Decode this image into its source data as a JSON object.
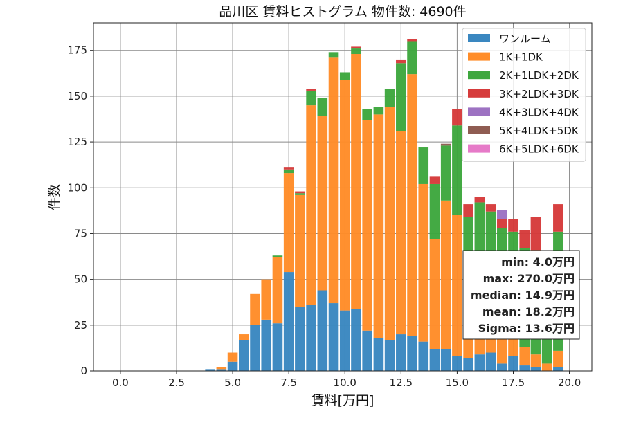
{
  "chart_data": {
    "type": "bar",
    "stacked": true,
    "title": "品川区 賃料ヒストグラム  物件数: 4690件",
    "xlabel": "賃料[万円]",
    "ylabel": "件数",
    "xlim": [
      -1.2,
      21.0
    ],
    "ylim": [
      0,
      190
    ],
    "xticks": [
      0.0,
      2.5,
      5.0,
      7.5,
      10.0,
      12.5,
      15.0,
      17.5,
      20.0
    ],
    "xtick_labels": [
      "0.0",
      "2.5",
      "5.0",
      "7.5",
      "10.0",
      "12.5",
      "15.0",
      "17.5",
      "20.0"
    ],
    "yticks": [
      0,
      25,
      50,
      75,
      100,
      125,
      150,
      175
    ],
    "ytick_labels": [
      "0",
      "25",
      "50",
      "75",
      "100",
      "125",
      "150",
      "175"
    ],
    "grid": true,
    "legend_position": "top-right",
    "bar_width": 0.45,
    "x": [
      4.0,
      4.5,
      5.0,
      5.5,
      6.0,
      6.5,
      7.0,
      7.5,
      8.0,
      8.5,
      9.0,
      9.5,
      10.0,
      10.5,
      11.0,
      11.5,
      12.0,
      12.5,
      13.0,
      13.5,
      14.0,
      14.5,
      15.0,
      15.5,
      16.0,
      16.5,
      17.0,
      17.5,
      18.0,
      18.5,
      19.0,
      19.5
    ],
    "series": [
      {
        "name": "ワンルーム",
        "color": "#3a87c0",
        "values": [
          1,
          1,
          5,
          17,
          25,
          28,
          26,
          54,
          35,
          36,
          44,
          37,
          33,
          34,
          22,
          18,
          17,
          20,
          19,
          16,
          12,
          12,
          8,
          7,
          9,
          10,
          4,
          8,
          3,
          2,
          0,
          2
        ]
      },
      {
        "name": "1K+1DK",
        "color": "#ff8c28",
        "values": [
          0,
          1,
          5,
          3,
          17,
          22,
          36,
          54,
          61,
          109,
          95,
          134,
          126,
          139,
          115,
          122,
          127,
          111,
          143,
          86,
          60,
          81,
          77,
          56,
          45,
          38,
          14,
          15,
          10,
          7,
          4,
          9
        ]
      },
      {
        "name": "2K+1LDK+2DK",
        "color": "#3ea73e",
        "values": [
          0,
          0,
          0,
          0,
          0,
          0,
          1,
          2,
          1,
          8,
          10,
          3,
          4,
          3,
          6,
          4,
          10,
          37,
          18,
          20,
          30,
          30,
          49,
          21,
          38,
          39,
          60,
          53,
          54,
          57,
          58,
          65
        ]
      },
      {
        "name": "3K+2LDK+3DK",
        "color": "#d63b3b",
        "values": [
          0,
          0,
          0,
          0,
          0,
          0,
          0,
          1,
          1,
          1,
          0,
          0,
          0,
          1,
          0,
          0,
          0,
          2,
          1,
          0,
          4,
          0,
          9,
          7,
          3,
          4,
          5,
          7,
          10,
          18,
          2,
          15
        ]
      },
      {
        "name": "4K+3LDK+4DK",
        "color": "#9d72c2",
        "values": [
          0,
          0,
          0,
          0,
          0,
          0,
          0,
          0,
          0,
          0,
          0,
          0,
          0,
          0,
          0,
          0,
          0,
          0,
          0,
          0,
          0,
          0,
          0,
          0,
          0,
          0,
          5,
          0,
          0,
          0,
          0,
          0
        ]
      },
      {
        "name": "5K+4LDK+5DK",
        "color": "#8f5c52",
        "values": [
          0,
          0,
          0,
          0,
          0,
          0,
          0,
          0,
          0,
          0,
          0,
          0,
          0,
          0,
          0,
          0,
          0,
          0,
          0,
          0,
          0,
          1,
          0,
          0,
          0,
          0,
          0,
          0,
          0,
          0,
          0,
          0
        ]
      },
      {
        "name": "6K+5LDK+6DK",
        "color": "#e67ac8",
        "values": [
          0,
          0,
          0,
          0,
          0,
          0,
          0,
          0,
          0,
          0,
          0,
          0,
          0,
          0,
          0,
          0,
          0,
          0,
          0,
          0,
          0,
          0,
          0,
          0,
          0,
          0,
          0,
          0,
          0,
          0,
          0,
          0
        ]
      }
    ],
    "stats_box": [
      "min: 4.0万円",
      "max: 270.0万円",
      "median: 14.9万円",
      "mean: 18.2万円",
      "Sigma: 13.6万円"
    ]
  }
}
